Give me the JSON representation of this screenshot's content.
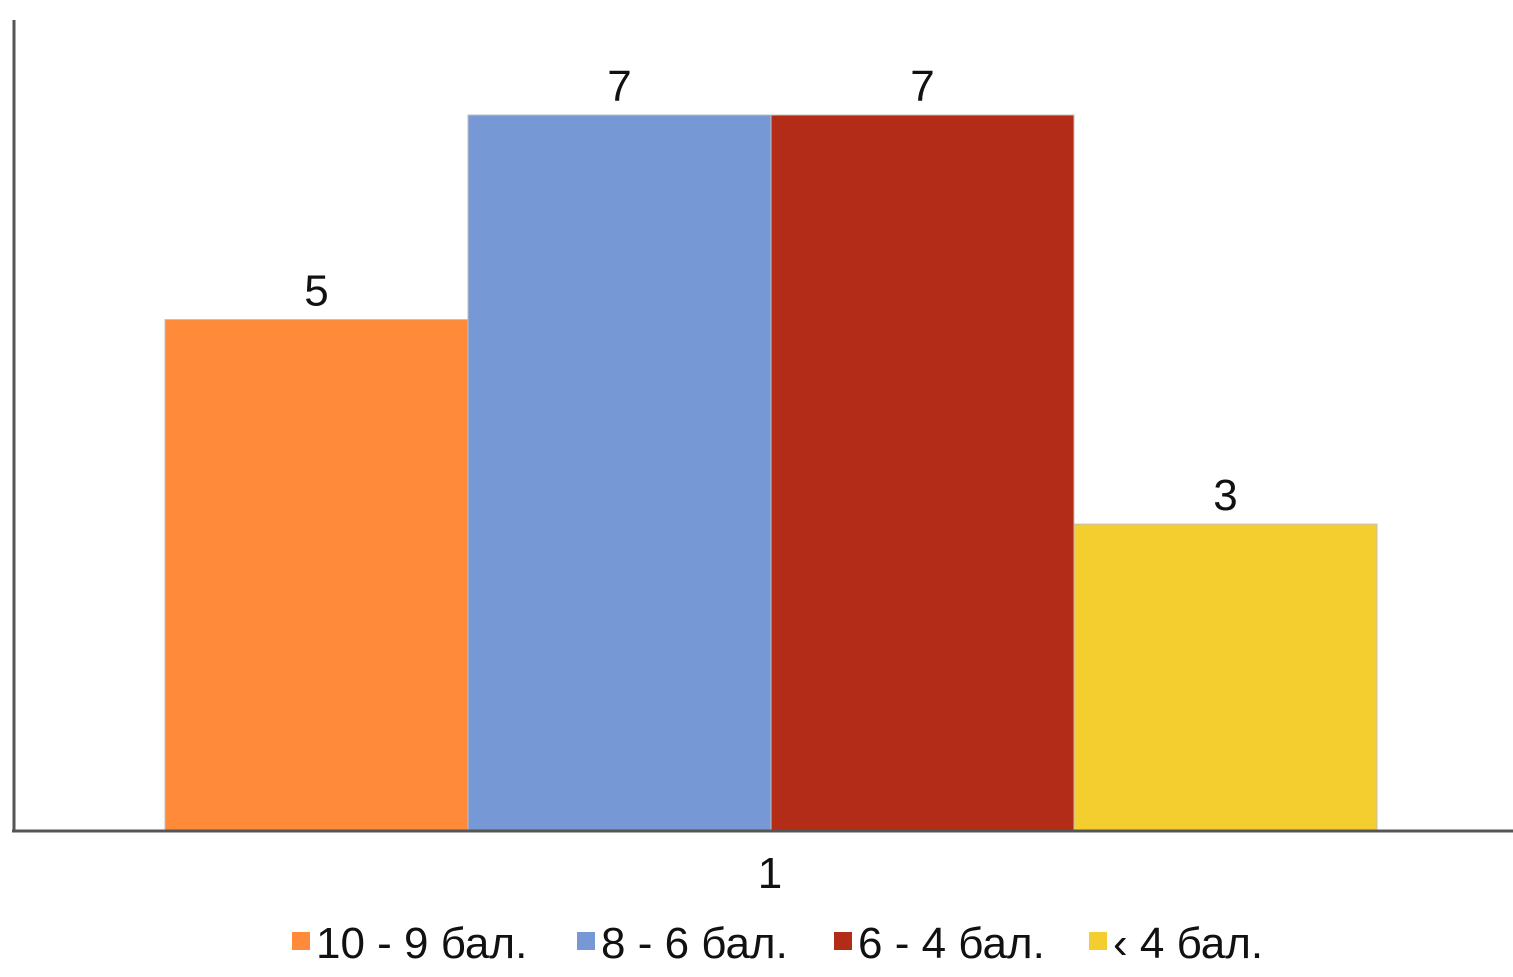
{
  "chart_data": {
    "type": "bar",
    "categories": [
      "1"
    ],
    "series": [
      {
        "name": "10 - 9 бал.",
        "values": [
          5
        ],
        "color": "#FF8A3A"
      },
      {
        "name": "8 - 6 бал.",
        "values": [
          7
        ],
        "color": "#7699D6"
      },
      {
        "name": "6 - 4 бал.",
        "values": [
          7
        ],
        "color": "#B22C18"
      },
      {
        "name": "‹ 4 бал.",
        "values": [
          3
        ],
        "color": "#F4CD2E"
      }
    ],
    "ylim": [
      0,
      7
    ],
    "grid": false,
    "legend": "bottom",
    "data_labels": true
  }
}
